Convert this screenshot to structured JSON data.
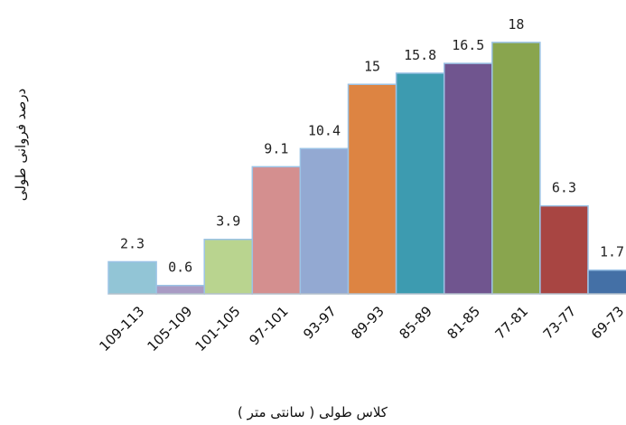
{
  "chart_data": {
    "type": "bar",
    "categories": [
      "109-113",
      "105-109",
      "101-105",
      "97-101",
      "93-97",
      "89-93",
      "85-89",
      "81-85",
      "77-81",
      "73-77",
      "69-73"
    ],
    "values": [
      2.3,
      0.6,
      3.9,
      9.1,
      10.4,
      15,
      15.8,
      16.5,
      18,
      6.3,
      1.7
    ],
    "value_labels": [
      "2.3",
      "0.6",
      "3.9",
      "9.1",
      "10.4",
      "15",
      "15.8",
      "16.5",
      "18",
      "6.3",
      "1.7"
    ],
    "colors": [
      "#92c5d6",
      "#a99bc4",
      "#b9d48f",
      "#d48f8f",
      "#93a9d2",
      "#dd8442",
      "#3d9bb0",
      "#70558f",
      "#89a54e",
      "#a84542",
      "#4470a6"
    ],
    "xlabel": "کلاس طولی ( سانتی متر )",
    "ylabel": "درصد فروانی طولی",
    "ylim": [
      0,
      18
    ],
    "grid": false,
    "legend": "none"
  }
}
